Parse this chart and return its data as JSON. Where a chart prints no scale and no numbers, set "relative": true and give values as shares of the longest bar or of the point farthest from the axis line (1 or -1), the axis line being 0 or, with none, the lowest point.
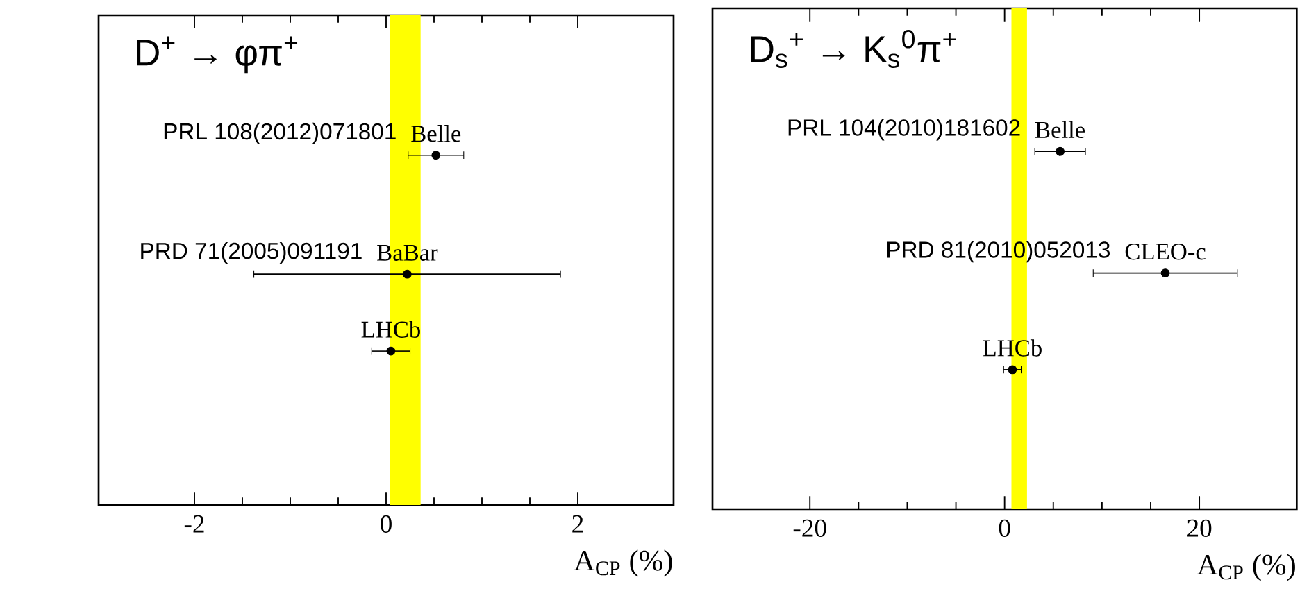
{
  "chart_data": [
    {
      "type": "scatter",
      "relative": true,
      "title": "D$^{+}$ → φπ$^{+}$",
      "xlabel": "A$_{CP}$ (%)",
      "x": [
        0.52,
        0.22,
        0.05
      ],
      "values": [
        1,
        0.66,
        0.44
      ],
      "xerrors": [
        0.29,
        1.6,
        0.2
      ],
      "color": "#000000",
      "marker": "circle",
      "xlim": [
        -3,
        3
      ],
      "xticks": [
        -2,
        0,
        2
      ],
      "bands": [
        {
          "axis": "x",
          "from": 0.04,
          "to": 0.36,
          "color": "#ffff00"
        }
      ],
      "annotations": [
        {
          "text": "Belle",
          "x": 0.52,
          "y": 1
        },
        "PRL 108(2012)071801",
        {
          "text": "BaBar",
          "x": 0.22,
          "y": 0.66
        },
        "PRD 71(2005)091191",
        {
          "text": "LHCb",
          "x": 0.05,
          "y": 0.44
        }
      ]
    },
    {
      "type": "scatter",
      "relative": true,
      "title": "D$_{s}$$^{+}$ → K$_{s}$$^{0}$π$^{+}$",
      "xlabel": "A$_{CP}$ (%)",
      "x": [
        5.7,
        16.5,
        0.8
      ],
      "values": [
        1,
        0.66,
        0.39
      ],
      "xerrors": [
        2.6,
        7.4,
        0.9
      ],
      "color": "#000000",
      "marker": "circle",
      "xlim": [
        -30,
        30
      ],
      "xticks": [
        -20,
        0,
        20
      ],
      "bands": [
        {
          "axis": "x",
          "from": 0.7,
          "to": 2.3,
          "color": "#ffff00"
        }
      ],
      "annotations": [
        {
          "text": "Belle",
          "x": 5.7,
          "y": 1
        },
        "PRL 104(2010)181602",
        {
          "text": "CLEO-c",
          "x": 16.5,
          "y": 0.66
        },
        "PRD 81(2010)052013",
        {
          "text": "LHCb",
          "x": 0.8,
          "y": 0.39
        }
      ]
    }
  ]
}
